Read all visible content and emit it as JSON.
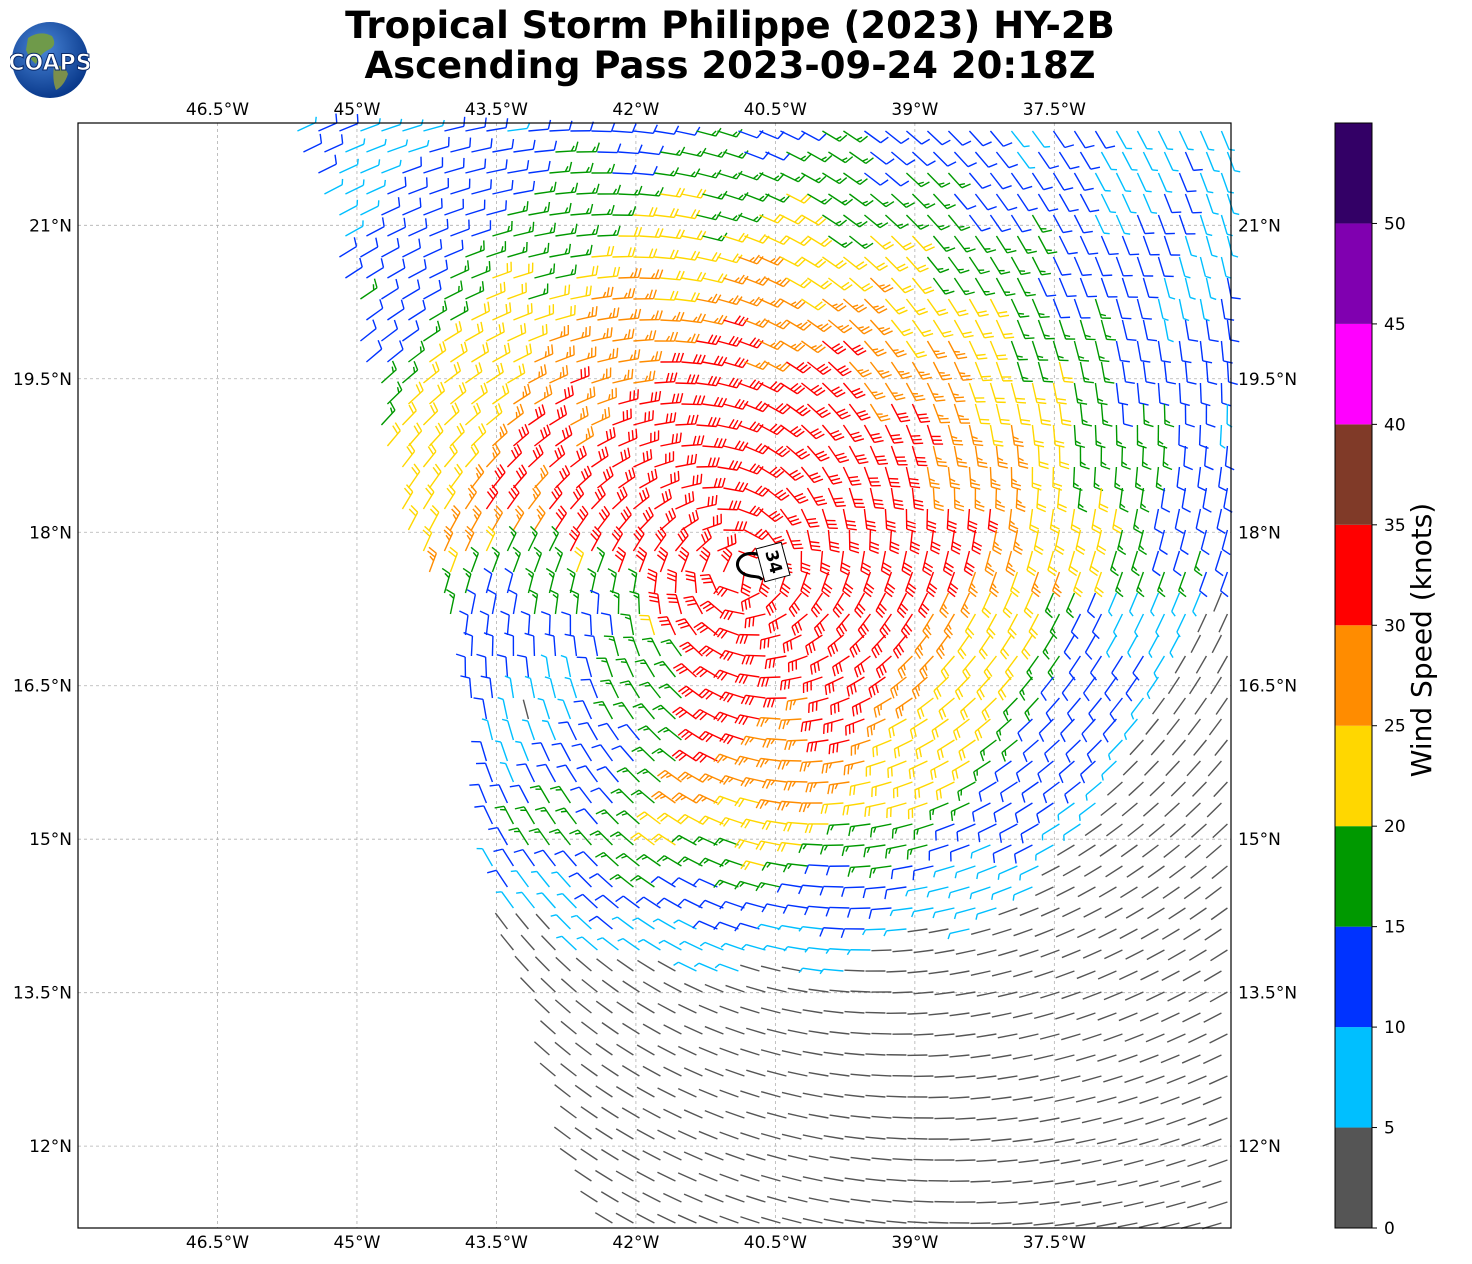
{
  "title": {
    "line1": "Tropical Storm Philippe (2023) HY-2B",
    "line2": "Ascending Pass 2023-09-24 20:18Z"
  },
  "logo": {
    "text": "COAPS",
    "icon": "globe-logo-icon"
  },
  "map": {
    "lon_range": [
      -48,
      -35.6
    ],
    "lat_range": [
      11.2,
      22
    ],
    "lon_ticks": [
      -46.5,
      -45,
      -43.5,
      -42,
      -40.5,
      -39,
      -37.5
    ],
    "lon_labels": [
      "46.5°W",
      "45°W",
      "43.5°W",
      "42°W",
      "40.5°W",
      "39°W",
      "37.5°W"
    ],
    "lat_ticks": [
      21,
      19.5,
      18,
      16.5,
      15,
      13.5,
      12
    ],
    "lat_labels": [
      "21°N",
      "19.5°N",
      "18°N",
      "16.5°N",
      "15°N",
      "13.5°N",
      "12°N"
    ],
    "grid": "dashed gray",
    "storm_center": {
      "lon": -40.9,
      "lat": 17.6
    },
    "contour_label": "34",
    "wind_field": "HY-2B scatterometer wind barbs, colored by wind speed"
  },
  "colorbar": {
    "label": "Wind Speed (knots)",
    "ticks": [
      0,
      5,
      10,
      15,
      20,
      25,
      30,
      35,
      40,
      45,
      50
    ],
    "bins": [
      {
        "from": 0,
        "to": 5,
        "color": "#555555"
      },
      {
        "from": 5,
        "to": 10,
        "color": "#00bfff"
      },
      {
        "from": 10,
        "to": 15,
        "color": "#0033ff"
      },
      {
        "from": 15,
        "to": 20,
        "color": "#009900"
      },
      {
        "from": 20,
        "to": 25,
        "color": "#ffd700"
      },
      {
        "from": 25,
        "to": 30,
        "color": "#ff8c00"
      },
      {
        "from": 30,
        "to": 35,
        "color": "#ff0000"
      },
      {
        "from": 35,
        "to": 40,
        "color": "#803a28"
      },
      {
        "from": 40,
        "to": 45,
        "color": "#ff00ff"
      },
      {
        "from": 45,
        "to": 50,
        "color": "#8000b0"
      },
      {
        "from": 50,
        "to": 55,
        "color": "#330066"
      }
    ]
  }
}
